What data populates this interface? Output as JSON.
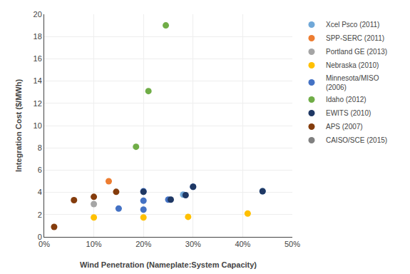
{
  "chart_data": {
    "type": "scatter",
    "xlabel": "Wind Penetration (Nameplate:System Capacity)",
    "ylabel": "Integration Cost ($/MWh)",
    "series": [
      {
        "name": "Xcel Psco (2011)",
        "color": "#70A8D8",
        "x": [
          0.28,
          0.44
        ],
        "values": [
          3.8,
          4.1
        ]
      },
      {
        "name": "SPP-SERC (2011)",
        "color": "#ED7D31",
        "x": [
          0.13
        ],
        "values": [
          5.0
        ]
      },
      {
        "name": "Portland GE (2013)",
        "color": "#A5A5A5",
        "x": [
          0.1
        ],
        "values": [
          2.95
        ]
      },
      {
        "name": "Nebraska (2010)",
        "color": "#FFC000",
        "x": [
          0.1,
          0.2,
          0.29,
          0.41
        ],
        "values": [
          1.75,
          1.75,
          1.8,
          2.1
        ]
      },
      {
        "name": "Minnesota/MISO\n(2006)",
        "color": "#4472C4",
        "x": [
          0.15,
          0.2,
          0.2,
          0.2,
          0.25,
          0.3
        ],
        "values": [
          2.55,
          4.1,
          3.25,
          2.45,
          3.35,
          4.5
        ]
      },
      {
        "name": "Idaho (2012)",
        "color": "#70AD47",
        "x": [
          0.185,
          0.21,
          0.245
        ],
        "values": [
          8.1,
          13.1,
          19.0
        ]
      },
      {
        "name": "EWITS (2010)",
        "color": "#1F3864",
        "x": [
          0.2,
          0.255,
          0.285,
          0.3,
          0.44
        ],
        "values": [
          4.05,
          3.35,
          3.75,
          4.5,
          4.1
        ]
      },
      {
        "name": "APS (2007)",
        "color": "#843C0C",
        "x": [
          0.02,
          0.06,
          0.1,
          0.145
        ],
        "values": [
          0.9,
          3.3,
          3.6,
          4.05
        ]
      },
      {
        "name": "CAISO/SCE (2015)",
        "color": "#808080",
        "x": [],
        "values": []
      }
    ],
    "xlim": [
      0,
      0.5
    ],
    "xticks": [
      {
        "value": 0,
        "label": "0%"
      },
      {
        "value": 0.1,
        "label": "10%"
      },
      {
        "value": 0.2,
        "label": "20%"
      },
      {
        "value": 0.3,
        "label": "30%"
      },
      {
        "value": 0.4,
        "label": "40%"
      },
      {
        "value": 0.5,
        "label": "50%"
      }
    ],
    "ylim": [
      0,
      20
    ],
    "yticks": [
      0,
      2,
      4,
      6,
      8,
      10,
      12,
      14,
      16,
      18,
      20
    ],
    "grid": true,
    "legend": "right",
    "marker": "circle"
  }
}
